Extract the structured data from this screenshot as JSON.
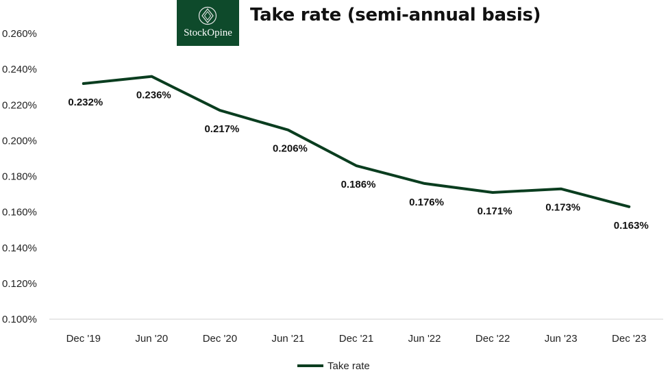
{
  "brand": {
    "name": "StockOpine",
    "logo_icon": "diamond-leaf-icon"
  },
  "colors": {
    "line": "#0a3d1f",
    "logo_bg": "#0e4a2b",
    "axis": "#d9d9d9",
    "text": "#222222"
  },
  "chart_data": {
    "type": "line",
    "title": "Take rate (semi-annual basis)",
    "xlabel": "",
    "ylabel": "",
    "categories": [
      "Dec '19",
      "Jun '20",
      "Dec '20",
      "Jun '21",
      "Dec '21",
      "Jun '22",
      "Dec '22",
      "Jun '23",
      "Dec '23"
    ],
    "series": [
      {
        "name": "Take rate",
        "values": [
          0.232,
          0.236,
          0.217,
          0.206,
          0.186,
          0.176,
          0.171,
          0.173,
          0.163
        ],
        "labels": [
          "0.232%",
          "0.236%",
          "0.217%",
          "0.206%",
          "0.186%",
          "0.176%",
          "0.171%",
          "0.173%",
          "0.163%"
        ]
      }
    ],
    "ylim": [
      0.1,
      0.26
    ],
    "yticks": [
      0.1,
      0.12,
      0.14,
      0.16,
      0.18,
      0.2,
      0.22,
      0.24,
      0.26
    ],
    "ytick_labels": [
      "0.100%",
      "0.120%",
      "0.140%",
      "0.160%",
      "0.180%",
      "0.200%",
      "0.220%",
      "0.240%",
      "0.260%"
    ],
    "grid": false,
    "legend": "bottom-center"
  }
}
